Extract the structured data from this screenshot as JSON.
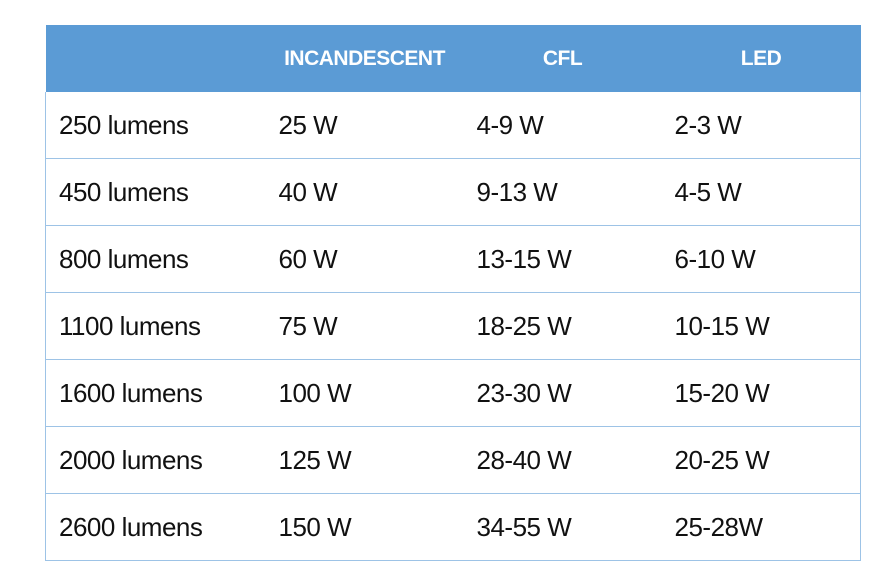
{
  "table": {
    "header": [
      "INCANDESCENT",
      "CFL",
      "LED"
    ],
    "rows": [
      [
        "250 lumens",
        "25 W",
        "4-9 W",
        "2-3 W"
      ],
      [
        "450 lumens",
        "40 W",
        "9-13 W",
        "4-5 W"
      ],
      [
        "800 lumens",
        "60 W",
        "13-15 W",
        "6-10 W"
      ],
      [
        "1100 lumens",
        "75 W",
        "18-25 W",
        "10-15 W"
      ],
      [
        "1600 lumens",
        "100 W",
        "23-30 W",
        "15-20 W"
      ],
      [
        "2000 lumens",
        "125 W",
        "28-40 W",
        "20-25 W"
      ],
      [
        "2600 lumens",
        "150 W",
        "34-55 W",
        "25-28W"
      ]
    ]
  }
}
